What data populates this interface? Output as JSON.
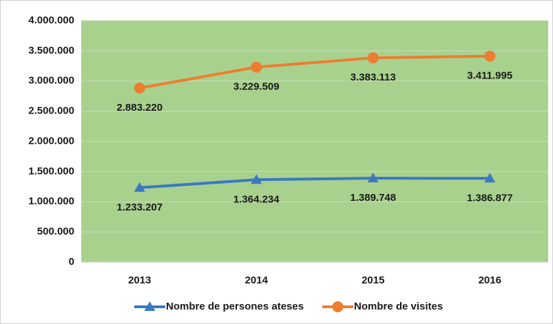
{
  "chart_data": {
    "type": "line",
    "categories": [
      "2013",
      "2014",
      "2015",
      "2016"
    ],
    "series": [
      {
        "name": "Nombre de persones ateses",
        "color": "#3a78c2",
        "marker": "triangle",
        "values": [
          1233207,
          1364234,
          1389748,
          1386877
        ],
        "value_labels": [
          "1.233.207",
          "1.364.234",
          "1.389.748",
          "1.386.877"
        ]
      },
      {
        "name": "Nombre de visites",
        "color": "#ed7d31",
        "marker": "circle",
        "values": [
          2883220,
          3229509,
          3383113,
          3411995
        ],
        "value_labels": [
          "2.883.220",
          "3.229.509",
          "3.383.113",
          "3.411.995"
        ]
      }
    ],
    "ylim": [
      0,
      4000000
    ],
    "yticks": [
      0,
      {
        "value": 500000,
        "label": "500.000"
      },
      {
        "value": 1000000,
        "label": "1.000.000"
      },
      {
        "value": 1500000,
        "label": "1.500.000"
      },
      {
        "value": 2000000,
        "label": "2.000.000"
      },
      {
        "value": 2500000,
        "label": "2.500.000"
      },
      {
        "value": 3000000,
        "label": "3.000.000"
      },
      {
        "value": 3500000,
        "label": "3.500.000"
      },
      {
        "value": 4000000,
        "label": "4.000.000"
      }
    ],
    "grid": true,
    "plot_background": "#a9d18e",
    "legend": "bottom"
  }
}
